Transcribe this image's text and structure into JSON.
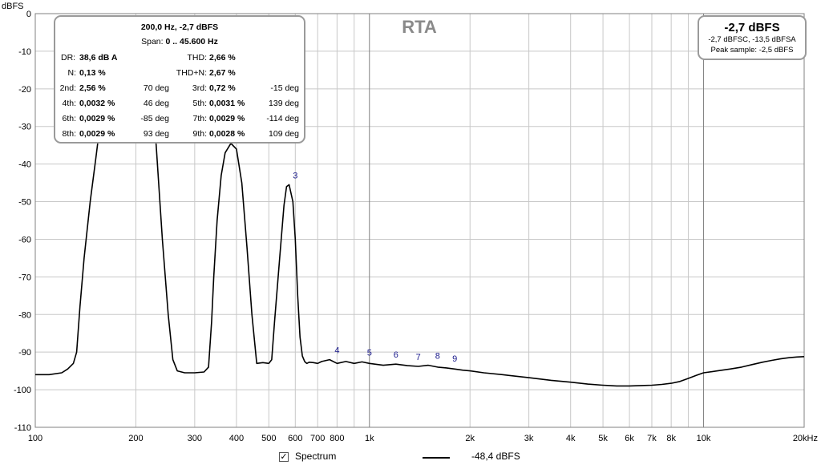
{
  "chart_data": {
    "type": "line",
    "title": "RTA",
    "ylabel": "dBFS",
    "xscale": "log",
    "xlim": [
      100,
      20000
    ],
    "ylim": [
      -110,
      0
    ],
    "grid": true,
    "y_ticks": [
      "0",
      "-10",
      "-20",
      "-30",
      "-40",
      "-50",
      "-60",
      "-70",
      "-80",
      "-90",
      "-100",
      "-110"
    ],
    "x_ticks": [
      "100",
      "200",
      "300",
      "400",
      "500",
      "600",
      "700",
      "800",
      "1k",
      "2k",
      "3k",
      "4k",
      "5k",
      "6k",
      "7k",
      "8k",
      "10k",
      "20kHz"
    ],
    "series": [
      {
        "name": "-48,4 dBFS",
        "x": [
          100,
          110,
          120,
          125,
          130,
          133,
          136,
          140,
          146,
          152,
          160,
          170,
          180,
          190,
          200,
          205,
          210,
          220,
          230,
          240,
          250,
          258,
          266,
          280,
          300,
          320,
          330,
          337,
          342,
          350,
          360,
          370,
          385,
          400,
          415,
          430,
          445,
          460,
          480,
          500,
          510,
          520,
          540,
          555,
          565,
          575,
          590,
          600,
          610,
          620,
          630,
          640,
          645,
          650,
          660,
          680,
          700,
          720,
          760,
          800,
          850,
          900,
          950,
          1000,
          1100,
          1200,
          1300,
          1400,
          1500,
          1600,
          1700,
          1800,
          1900,
          2000,
          2200,
          2500,
          3000,
          3500,
          4000,
          4500,
          5000,
          5500,
          6000,
          6500,
          7000,
          7500,
          8000,
          8500,
          9000,
          9500,
          10000,
          11000,
          12000,
          13000,
          14000,
          15000,
          16000,
          17000,
          18000,
          19000,
          20000
        ],
        "y": [
          -96,
          -96,
          -95.5,
          -94.5,
          -93,
          -90,
          -78,
          -65,
          -50,
          -38,
          -22,
          -10,
          -5,
          -3,
          -2.7,
          -3,
          -5,
          -15,
          -35,
          -60,
          -80,
          -92,
          -95,
          -95.5,
          -95.5,
          -95.3,
          -94,
          -82,
          -70,
          -55,
          -43,
          -37,
          -34.5,
          -36,
          -45,
          -62,
          -80,
          -93,
          -92.8,
          -93,
          -92,
          -82,
          -64,
          -51,
          -46,
          -45.5,
          -50,
          -60,
          -75,
          -86,
          -91,
          -92.5,
          -92.8,
          -93,
          -92.7,
          -92.8,
          -93,
          -92.5,
          -92,
          -93,
          -92.5,
          -93,
          -92.6,
          -93,
          -93.5,
          -93.2,
          -93.6,
          -93.8,
          -93.5,
          -94,
          -94.2,
          -94.5,
          -94.8,
          -95,
          -95.5,
          -96,
          -96.8,
          -97.5,
          -98,
          -98.5,
          -98.8,
          -99,
          -99,
          -98.9,
          -98.8,
          -98.6,
          -98.3,
          -97.8,
          -97,
          -96.2,
          -95.5,
          -95,
          -94.5,
          -94,
          -93.3,
          -92.7,
          -92.2,
          -91.8,
          -91.5,
          -91.3,
          -91.2
        ]
      }
    ],
    "harmonic_markers": [
      {
        "label": "3",
        "x": 600,
        "y": -45.5
      },
      {
        "label": "4",
        "x": 800,
        "y": -92
      },
      {
        "label": "5",
        "x": 1000,
        "y": -92.6
      },
      {
        "label": "6",
        "x": 1200,
        "y": -93.2
      },
      {
        "label": "7",
        "x": 1400,
        "y": -93.8
      },
      {
        "label": "8",
        "x": 1600,
        "y": -93.5
      },
      {
        "label": "9",
        "x": 1800,
        "y": -94.2
      }
    ]
  },
  "info": {
    "freq_level": "200,0 Hz, -2,7 dBFS",
    "span_label": "Span:",
    "span_value": "0 .. 45.600 Hz",
    "dr_label": "DR:",
    "dr_value": "38,6 dB A",
    "thd_label": "THD:",
    "thd_value": "2,66 %",
    "n_label": "N:",
    "n_value": "0,13 %",
    "thdn_label": "THD+N:",
    "thdn_value": "2,67 %",
    "harmonics": [
      {
        "label": "2nd:",
        "value": "2,56 %",
        "phase": "70 deg"
      },
      {
        "label": "3rd:",
        "value": "0,72 %",
        "phase": "-15 deg"
      },
      {
        "label": "4th:",
        "value": "0,0032 %",
        "phase": "46 deg"
      },
      {
        "label": "5th:",
        "value": "0,0031 %",
        "phase": "139 deg"
      },
      {
        "label": "6th:",
        "value": "0,0029 %",
        "phase": "-85 deg"
      },
      {
        "label": "7th:",
        "value": "0,0029 %",
        "phase": "-114 deg"
      },
      {
        "label": "8th:",
        "value": "0,0029 %",
        "phase": "93 deg"
      },
      {
        "label": "9th:",
        "value": "0,0028 %",
        "phase": "109 deg"
      }
    ]
  },
  "level": {
    "main": "-2,7 dBFS",
    "sub": "-2,7 dBFSC, -13,5 dBFSA",
    "peak": "Peak sample: -2,5 dBFS"
  },
  "legend": {
    "checkbox_checked": true,
    "check_mark": "✓",
    "spectrum_label": "Spectrum",
    "line_label": "-48,4 dBFS"
  }
}
